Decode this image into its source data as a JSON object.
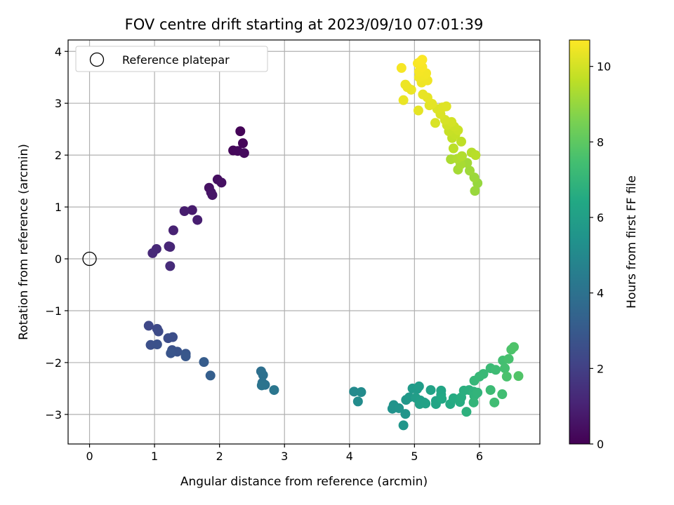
{
  "chart_data": {
    "type": "scatter",
    "title": "FOV centre drift starting at 2023/09/10 07:01:39",
    "xlabel": "Angular distance from reference (arcmin)",
    "ylabel": "Rotation from reference (arcmin)",
    "xlim": [
      -0.33,
      6.93
    ],
    "ylim": [
      -3.57,
      4.22
    ],
    "xticks": [
      0,
      1,
      2,
      3,
      4,
      5,
      6
    ],
    "yticks": [
      -3,
      -2,
      -1,
      0,
      1,
      2,
      3,
      4
    ],
    "grid": true,
    "legend": {
      "placement": "top-left",
      "entries": [
        "Reference platepar"
      ]
    },
    "reference_point": {
      "x": 0,
      "y": 0
    },
    "colorbar": {
      "label": "Hours from first FF file",
      "range": [
        0,
        10.7
      ],
      "ticks": [
        0,
        2,
        4,
        6,
        8,
        10
      ],
      "colormap": "viridis"
    },
    "points": [
      {
        "x": 2.32,
        "y": 2.46,
        "t": 0.1
      },
      {
        "x": 2.36,
        "y": 2.23,
        "t": 0.15
      },
      {
        "x": 2.21,
        "y": 2.09,
        "t": 0.2
      },
      {
        "x": 2.28,
        "y": 2.08,
        "t": 0.25
      },
      {
        "x": 2.38,
        "y": 2.04,
        "t": 0.3
      },
      {
        "x": 1.97,
        "y": 1.53,
        "t": 0.4
      },
      {
        "x": 2.03,
        "y": 1.47,
        "t": 0.45
      },
      {
        "x": 1.84,
        "y": 1.37,
        "t": 0.5
      },
      {
        "x": 1.87,
        "y": 1.28,
        "t": 0.55
      },
      {
        "x": 1.89,
        "y": 1.23,
        "t": 0.6
      },
      {
        "x": 1.58,
        "y": 0.94,
        "t": 0.8
      },
      {
        "x": 1.46,
        "y": 0.92,
        "t": 0.85
      },
      {
        "x": 1.66,
        "y": 0.75,
        "t": 0.9
      },
      {
        "x": 1.29,
        "y": 0.55,
        "t": 1.0
      },
      {
        "x": 1.22,
        "y": 0.24,
        "t": 1.1
      },
      {
        "x": 1.24,
        "y": 0.23,
        "t": 1.15
      },
      {
        "x": 1.03,
        "y": 0.19,
        "t": 1.2
      },
      {
        "x": 0.97,
        "y": 0.11,
        "t": 1.25
      },
      {
        "x": 1.24,
        "y": -0.14,
        "t": 1.3
      },
      {
        "x": 0.91,
        "y": -1.29,
        "t": 2.3
      },
      {
        "x": 1.04,
        "y": -1.35,
        "t": 2.35
      },
      {
        "x": 1.06,
        "y": -1.4,
        "t": 2.4
      },
      {
        "x": 1.21,
        "y": -1.53,
        "t": 2.5
      },
      {
        "x": 1.28,
        "y": -1.51,
        "t": 2.55
      },
      {
        "x": 0.94,
        "y": -1.66,
        "t": 2.6
      },
      {
        "x": 1.04,
        "y": -1.65,
        "t": 2.65
      },
      {
        "x": 1.27,
        "y": -1.76,
        "t": 2.7
      },
      {
        "x": 1.35,
        "y": -1.79,
        "t": 2.75
      },
      {
        "x": 1.25,
        "y": -1.82,
        "t": 2.8
      },
      {
        "x": 1.48,
        "y": -1.83,
        "t": 2.85
      },
      {
        "x": 1.48,
        "y": -1.88,
        "t": 2.9
      },
      {
        "x": 1.76,
        "y": -1.99,
        "t": 3.1
      },
      {
        "x": 1.86,
        "y": -2.25,
        "t": 3.2
      },
      {
        "x": 2.64,
        "y": -2.17,
        "t": 3.9
      },
      {
        "x": 2.67,
        "y": -2.24,
        "t": 3.95
      },
      {
        "x": 2.66,
        "y": -2.39,
        "t": 4.0
      },
      {
        "x": 2.7,
        "y": -2.43,
        "t": 4.05
      },
      {
        "x": 2.65,
        "y": -2.44,
        "t": 4.1
      },
      {
        "x": 2.84,
        "y": -2.53,
        "t": 4.2
      },
      {
        "x": 4.07,
        "y": -2.56,
        "t": 5.05
      },
      {
        "x": 4.18,
        "y": -2.57,
        "t": 5.1
      },
      {
        "x": 4.13,
        "y": -2.75,
        "t": 5.15
      },
      {
        "x": 4.66,
        "y": -2.89,
        "t": 5.4
      },
      {
        "x": 4.68,
        "y": -2.82,
        "t": 5.45
      },
      {
        "x": 4.76,
        "y": -2.88,
        "t": 5.5
      },
      {
        "x": 4.86,
        "y": -2.99,
        "t": 5.55
      },
      {
        "x": 4.83,
        "y": -3.21,
        "t": 5.6
      },
      {
        "x": 4.87,
        "y": -2.72,
        "t": 5.65
      },
      {
        "x": 4.92,
        "y": -2.67,
        "t": 5.7
      },
      {
        "x": 4.97,
        "y": -2.5,
        "t": 5.75
      },
      {
        "x": 5.04,
        "y": -2.51,
        "t": 5.8
      },
      {
        "x": 5.07,
        "y": -2.46,
        "t": 5.85
      },
      {
        "x": 5.02,
        "y": -2.68,
        "t": 5.9
      },
      {
        "x": 5.09,
        "y": -2.73,
        "t": 5.95
      },
      {
        "x": 5.15,
        "y": -2.77,
        "t": 6.0
      },
      {
        "x": 5.08,
        "y": -2.8,
        "t": 6.05
      },
      {
        "x": 5.17,
        "y": -2.79,
        "t": 6.1
      },
      {
        "x": 5.25,
        "y": -2.53,
        "t": 6.15
      },
      {
        "x": 5.33,
        "y": -2.74,
        "t": 6.2
      },
      {
        "x": 5.33,
        "y": -2.8,
        "t": 6.25
      },
      {
        "x": 5.41,
        "y": -2.54,
        "t": 6.3
      },
      {
        "x": 5.41,
        "y": -2.62,
        "t": 6.35
      },
      {
        "x": 5.42,
        "y": -2.7,
        "t": 6.4
      },
      {
        "x": 5.55,
        "y": -2.8,
        "t": 6.5
      },
      {
        "x": 5.6,
        "y": -2.69,
        "t": 6.55
      },
      {
        "x": 5.7,
        "y": -2.76,
        "t": 6.6
      },
      {
        "x": 5.72,
        "y": -2.67,
        "t": 6.65
      },
      {
        "x": 5.76,
        "y": -2.54,
        "t": 6.7
      },
      {
        "x": 5.84,
        "y": -2.53,
        "t": 6.75
      },
      {
        "x": 5.8,
        "y": -2.95,
        "t": 6.8
      },
      {
        "x": 5.91,
        "y": -2.56,
        "t": 6.85
      },
      {
        "x": 5.92,
        "y": -2.64,
        "t": 6.9
      },
      {
        "x": 5.97,
        "y": -2.58,
        "t": 6.95
      },
      {
        "x": 5.91,
        "y": -2.77,
        "t": 7.0
      },
      {
        "x": 5.92,
        "y": -2.35,
        "t": 7.05
      },
      {
        "x": 6.0,
        "y": -2.27,
        "t": 7.1
      },
      {
        "x": 6.06,
        "y": -2.22,
        "t": 7.15
      },
      {
        "x": 6.17,
        "y": -2.11,
        "t": 7.2
      },
      {
        "x": 6.17,
        "y": -2.53,
        "t": 7.25
      },
      {
        "x": 6.25,
        "y": -2.14,
        "t": 7.3
      },
      {
        "x": 6.23,
        "y": -2.77,
        "t": 7.35
      },
      {
        "x": 6.35,
        "y": -2.61,
        "t": 7.4
      },
      {
        "x": 6.36,
        "y": -1.96,
        "t": 7.45
      },
      {
        "x": 6.39,
        "y": -2.11,
        "t": 7.5
      },
      {
        "x": 6.45,
        "y": -1.93,
        "t": 7.55
      },
      {
        "x": 6.42,
        "y": -2.27,
        "t": 7.6
      },
      {
        "x": 6.49,
        "y": -1.75,
        "t": 7.65
      },
      {
        "x": 6.53,
        "y": -1.7,
        "t": 7.7
      },
      {
        "x": 6.6,
        "y": -2.26,
        "t": 7.75
      },
      {
        "x": 5.97,
        "y": 1.46,
        "t": 9.0
      },
      {
        "x": 5.93,
        "y": 1.31,
        "t": 9.05
      },
      {
        "x": 5.92,
        "y": 1.57,
        "t": 9.1
      },
      {
        "x": 5.85,
        "y": 1.7,
        "t": 9.15
      },
      {
        "x": 5.81,
        "y": 1.85,
        "t": 9.2
      },
      {
        "x": 5.67,
        "y": 1.72,
        "t": 9.25
      },
      {
        "x": 5.71,
        "y": 1.82,
        "t": 9.3
      },
      {
        "x": 5.56,
        "y": 1.92,
        "t": 9.35
      },
      {
        "x": 5.66,
        "y": 1.93,
        "t": 9.4
      },
      {
        "x": 5.73,
        "y": 1.98,
        "t": 9.45
      },
      {
        "x": 5.88,
        "y": 2.05,
        "t": 9.5
      },
      {
        "x": 5.94,
        "y": 2.0,
        "t": 9.55
      },
      {
        "x": 5.6,
        "y": 2.13,
        "t": 9.6
      },
      {
        "x": 5.72,
        "y": 2.26,
        "t": 9.65
      },
      {
        "x": 5.58,
        "y": 2.33,
        "t": 9.7
      },
      {
        "x": 5.63,
        "y": 2.4,
        "t": 9.75
      },
      {
        "x": 5.53,
        "y": 2.46,
        "t": 9.8
      },
      {
        "x": 5.67,
        "y": 2.48,
        "t": 9.85
      },
      {
        "x": 5.61,
        "y": 2.55,
        "t": 9.9
      },
      {
        "x": 5.5,
        "y": 2.58,
        "t": 9.95
      },
      {
        "x": 5.57,
        "y": 2.64,
        "t": 10.0
      },
      {
        "x": 5.47,
        "y": 2.68,
        "t": 10.05
      },
      {
        "x": 5.32,
        "y": 2.62,
        "t": 10.1
      },
      {
        "x": 5.4,
        "y": 2.79,
        "t": 10.12
      },
      {
        "x": 5.35,
        "y": 2.89,
        "t": 10.15
      },
      {
        "x": 5.43,
        "y": 2.92,
        "t": 10.18
      },
      {
        "x": 5.49,
        "y": 2.94,
        "t": 10.2
      },
      {
        "x": 5.23,
        "y": 2.96,
        "t": 10.25
      },
      {
        "x": 5.27,
        "y": 2.99,
        "t": 10.28
      },
      {
        "x": 5.06,
        "y": 2.86,
        "t": 10.3
      },
      {
        "x": 5.2,
        "y": 3.11,
        "t": 10.32
      },
      {
        "x": 5.13,
        "y": 3.17,
        "t": 10.35
      },
      {
        "x": 4.83,
        "y": 3.06,
        "t": 10.38
      },
      {
        "x": 4.95,
        "y": 3.26,
        "t": 10.4
      },
      {
        "x": 4.89,
        "y": 3.31,
        "t": 10.42
      },
      {
        "x": 4.86,
        "y": 3.36,
        "t": 10.44
      },
      {
        "x": 5.11,
        "y": 3.4,
        "t": 10.46
      },
      {
        "x": 5.2,
        "y": 3.44,
        "t": 10.48
      },
      {
        "x": 5.07,
        "y": 3.5,
        "t": 10.5
      },
      {
        "x": 5.15,
        "y": 3.55,
        "t": 10.52
      },
      {
        "x": 5.18,
        "y": 3.58,
        "t": 10.54
      },
      {
        "x": 5.07,
        "y": 3.61,
        "t": 10.56
      },
      {
        "x": 4.8,
        "y": 3.68,
        "t": 10.58
      },
      {
        "x": 5.12,
        "y": 3.7,
        "t": 10.6
      },
      {
        "x": 5.05,
        "y": 3.77,
        "t": 10.62
      },
      {
        "x": 5.09,
        "y": 3.8,
        "t": 10.64
      },
      {
        "x": 5.12,
        "y": 3.84,
        "t": 10.66
      }
    ]
  }
}
